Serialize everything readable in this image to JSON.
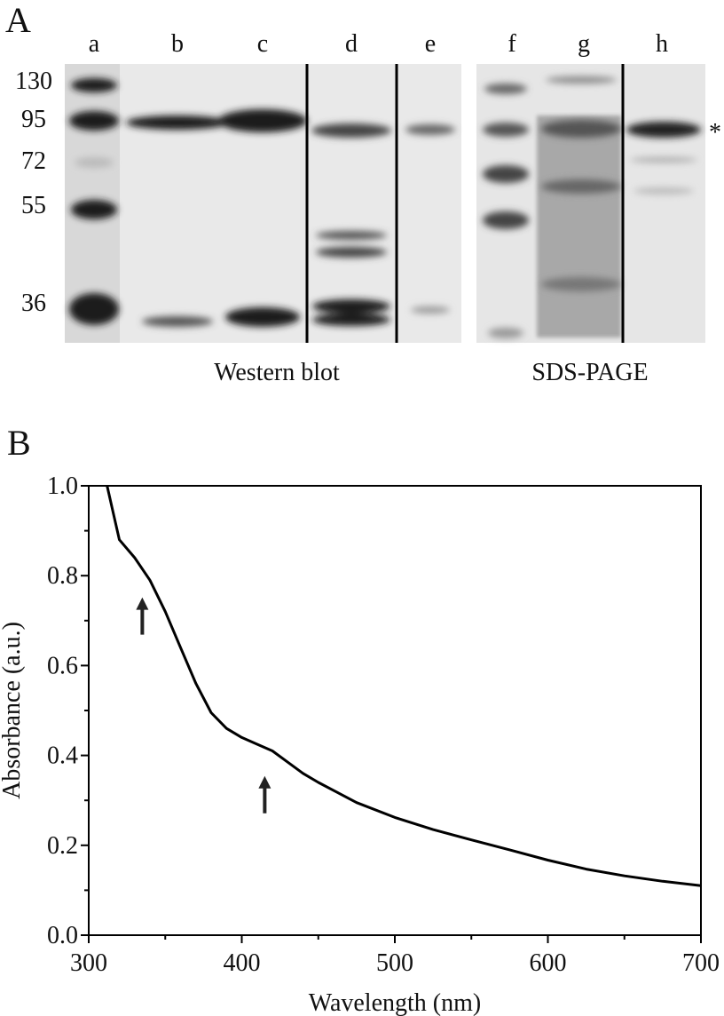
{
  "panel_a": {
    "label": "A",
    "lanes": [
      "a",
      "b",
      "c",
      "d",
      "e",
      "f",
      "g",
      "h"
    ],
    "mw_markers": [
      130,
      95,
      72,
      55,
      36
    ],
    "asterisk": "*",
    "captions": [
      "Western blot",
      "SDS-PAGE"
    ]
  },
  "panel_b": {
    "label": "B"
  },
  "chart_data": {
    "type": "line",
    "x_label": "Wavelength (nm)",
    "y_label": "Absorbance (a.u.)",
    "x": [
      312,
      320,
      330,
      340,
      350,
      360,
      370,
      380,
      390,
      400,
      410,
      420,
      430,
      440,
      450,
      475,
      500,
      525,
      550,
      575,
      600,
      625,
      650,
      675,
      700
    ],
    "series": [
      {
        "color": "#000000",
        "values": [
          1.0,
          0.88,
          0.84,
          0.79,
          0.72,
          0.64,
          0.56,
          0.495,
          0.46,
          0.44,
          0.425,
          0.41,
          0.385,
          0.36,
          0.34,
          0.295,
          0.262,
          0.235,
          0.212,
          0.19,
          0.167,
          0.147,
          0.132,
          0.12,
          0.11
        ]
      }
    ],
    "xlim": [
      300,
      700
    ],
    "ylim": [
      0,
      1
    ],
    "xticks": [
      300,
      400,
      500,
      600,
      700
    ],
    "yticks": [
      {
        "value": 0,
        "label": "0.0"
      },
      0.2,
      0.4,
      0.6,
      0.8,
      {
        "value": 1,
        "label": "1.0"
      }
    ],
    "xminorticks": [
      350,
      450,
      550,
      650
    ],
    "yminorticks": [
      0.1,
      0.3,
      0.5,
      0.7,
      0.9
    ],
    "arrows_x": [
      335,
      415
    ]
  }
}
